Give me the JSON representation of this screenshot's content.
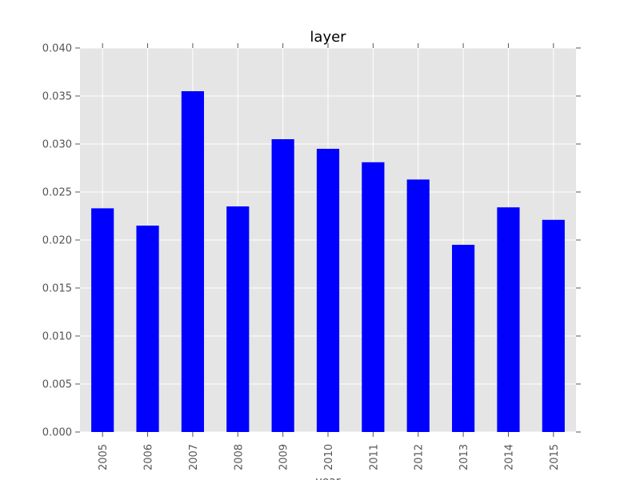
{
  "chart_data": {
    "type": "bar",
    "title": "layer",
    "xlabel": "year",
    "ylabel": "",
    "categories": [
      "2005",
      "2006",
      "2007",
      "2008",
      "2009",
      "2010",
      "2011",
      "2012",
      "2013",
      "2014",
      "2015"
    ],
    "values": [
      0.0233,
      0.0215,
      0.0355,
      0.0235,
      0.0305,
      0.0295,
      0.0281,
      0.0263,
      0.0195,
      0.0234,
      0.0221
    ],
    "ylim": [
      0,
      0.04
    ],
    "yticks": [
      "0.000",
      "0.005",
      "0.010",
      "0.015",
      "0.020",
      "0.025",
      "0.030",
      "0.035",
      "0.040"
    ],
    "grid": true,
    "legend": "none",
    "colors": {
      "bar": "#0000ff",
      "plot_background": "#e5e5e5",
      "grid": "#ffffff",
      "tick_text": "#555555"
    }
  }
}
